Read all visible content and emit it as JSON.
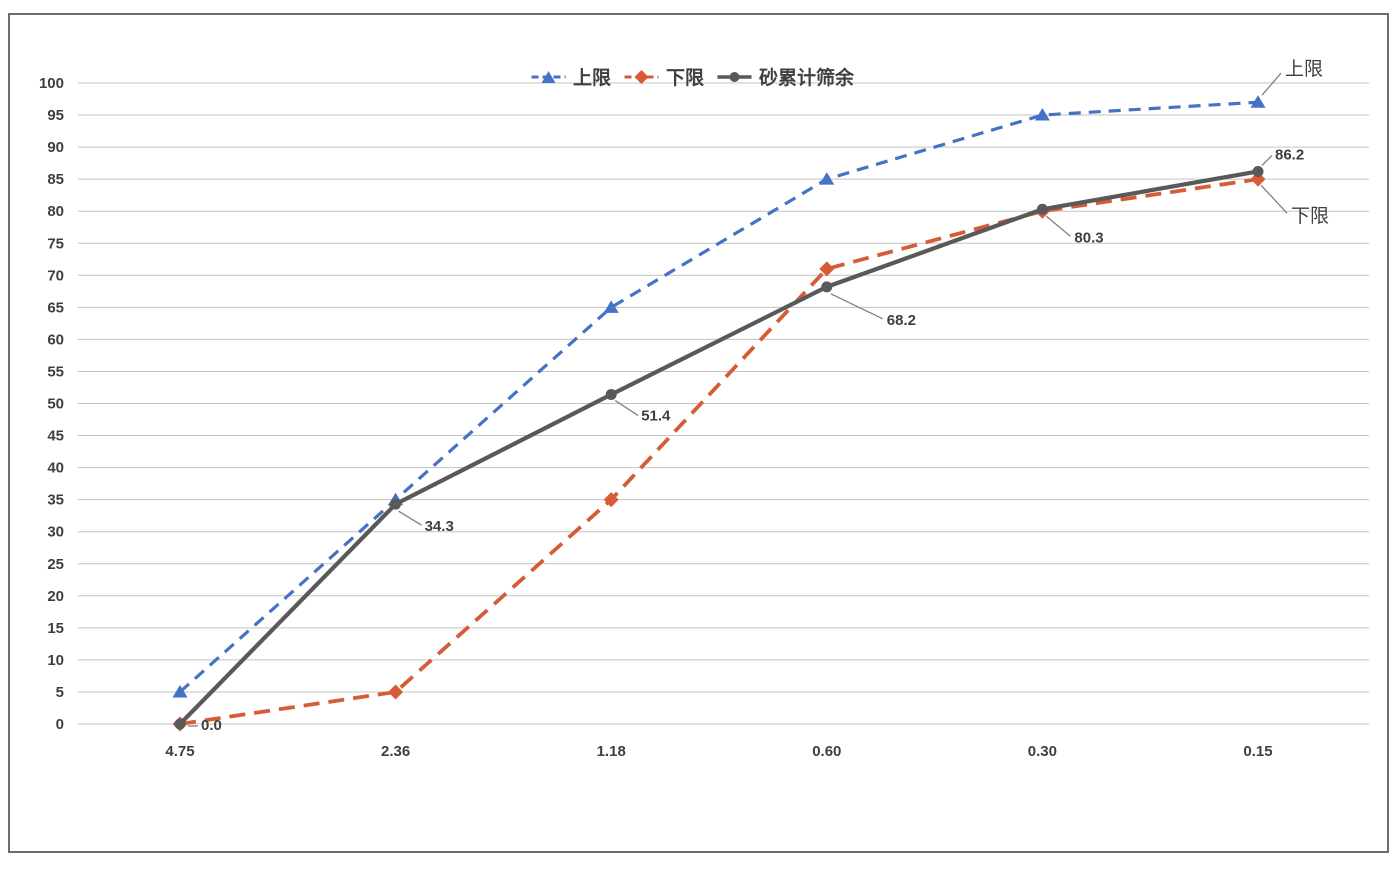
{
  "chart_data": {
    "type": "line",
    "title": "",
    "categories": [
      "4.75",
      "2.36",
      "1.18",
      "0.60",
      "0.30",
      "0.15"
    ],
    "ylim": [
      0,
      100
    ],
    "ytick_step": 5,
    "grid": "horizontal",
    "legend_position": "top-center",
    "series": [
      {
        "name": "上限",
        "color": "#4472C4",
        "line_style": "dashed",
        "marker": "triangle",
        "values": [
          5,
          35,
          65,
          85,
          95,
          97
        ]
      },
      {
        "name": "下限",
        "color": "#D65C38",
        "line_style": "dashed",
        "marker": "diamond",
        "values": [
          0,
          5,
          35,
          71,
          80,
          85
        ]
      },
      {
        "name": "砂累计筛余",
        "color": "#595959",
        "line_style": "solid",
        "marker": "circle",
        "values": [
          0.0,
          34.3,
          51.4,
          68.2,
          80.3,
          86.2
        ],
        "point_labels": [
          "0.0",
          "34.3",
          "51.4",
          "68.2",
          "80.3",
          "86.2"
        ]
      }
    ],
    "annotations": [
      {
        "text": "上限",
        "series": 0,
        "point": 5
      },
      {
        "text": "下限",
        "series": 1,
        "point": 5
      }
    ],
    "style": {
      "grid_color": "#C3C3C3",
      "axis_text_color": "#3f3f3f",
      "leader_line_color": "#7f7f7f",
      "frame_border_color": "#6e6e6e"
    }
  }
}
